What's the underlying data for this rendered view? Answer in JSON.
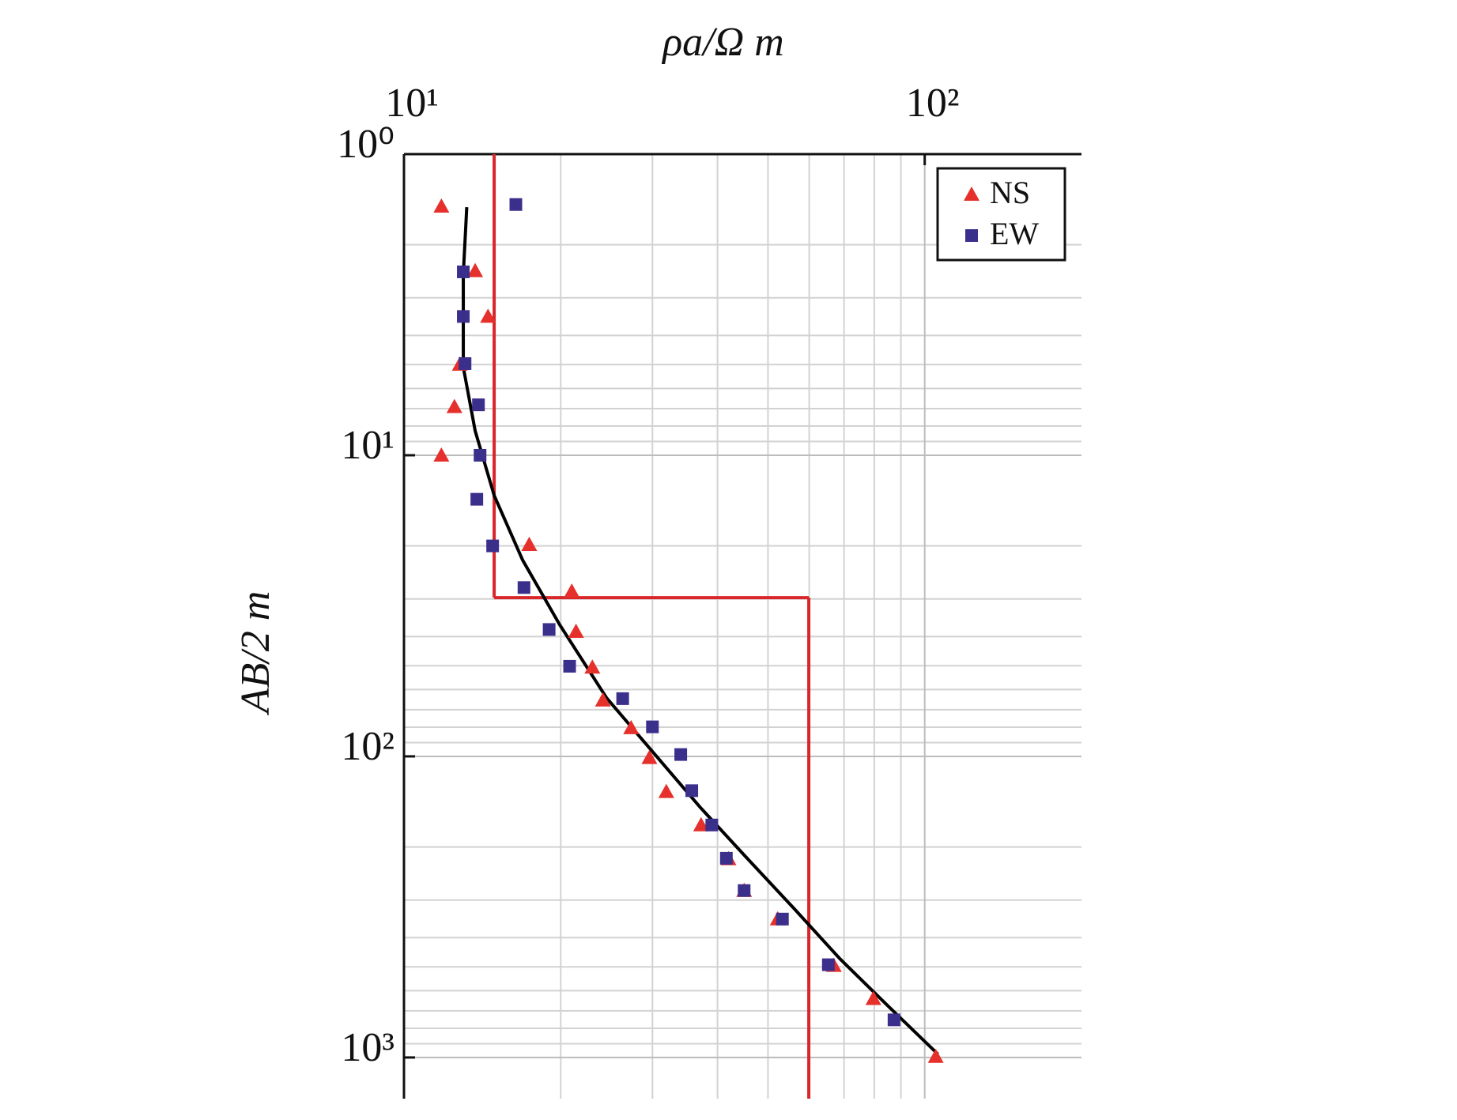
{
  "chart_data": {
    "type": "scatter",
    "xlabel": "ρa/Ω m",
    "ylabel": "AB/2 m",
    "xscale": "log",
    "yscale": "log",
    "y_inverted": true,
    "xlim": [
      10,
      200
    ],
    "ylim": [
      1,
      1370
    ],
    "xticks": [
      {
        "value": 10,
        "label": "10¹"
      },
      {
        "value": 100,
        "label": "10²"
      }
    ],
    "yticks": [
      {
        "value": 1,
        "label": "10⁰"
      },
      {
        "value": 10,
        "label": "10¹"
      },
      {
        "value": 100,
        "label": "10²"
      },
      {
        "value": 1000,
        "label": "10³"
      }
    ],
    "x_minor_ticks": [
      20,
      30,
      40,
      50,
      60,
      70,
      80,
      90
    ],
    "y_minor_ticks": [
      2,
      3,
      4,
      5,
      6,
      7,
      8,
      9,
      20,
      30,
      40,
      50,
      60,
      70,
      80,
      90,
      200,
      300,
      400,
      500,
      600,
      700,
      800,
      900
    ],
    "grid": true,
    "legend": "upper right",
    "series": [
      {
        "name": "NS",
        "marker": "triangle",
        "color": "#e5302b",
        "x": [
          11.8,
          13.7,
          14.5,
          12.8,
          12.5,
          11.8,
          17.4,
          21.0,
          21.4,
          23.0,
          24.1,
          27.3,
          29.6,
          31.9,
          37.2,
          42.0,
          45.0,
          52.2,
          66.9,
          79.7,
          105
        ],
        "values": [
          1.49,
          2.44,
          3.46,
          4.99,
          6.9,
          10,
          19.8,
          28.3,
          38.5,
          50.6,
          65.1,
          80.4,
          101,
          131,
          169,
          219,
          279,
          347,
          495,
          638,
          993
        ]
      },
      {
        "name": "EW",
        "marker": "square",
        "color": "#3b2f8c",
        "x": [
          16.4,
          13.0,
          13.0,
          13.1,
          13.9,
          14.0,
          13.8,
          14.8,
          17.0,
          19.0,
          20.8,
          26.3,
          30.0,
          34.0,
          35.7,
          39.0,
          41.6,
          45.0,
          53.3,
          65.3,
          87.3
        ],
        "values": [
          1.47,
          2.46,
          3.46,
          4.96,
          6.8,
          10,
          14.0,
          20,
          27.5,
          37.9,
          50.2,
          64.3,
          79.8,
          98.6,
          130,
          169,
          218,
          279,
          347,
          492,
          750
        ]
      }
    ],
    "fit_curve": {
      "color": "#000000",
      "x": [
        13.2,
        13.0,
        13.0,
        13.7,
        14.9,
        16.9,
        19.9,
        24.5,
        30.1,
        37.1,
        45.6,
        56.1,
        68.8,
        84.7,
        106
      ],
      "values": [
        1.5,
        2.5,
        5.1,
        8.3,
        13.6,
        22.3,
        36.5,
        64,
        97,
        148,
        218,
        320,
        471,
        670,
        975
      ]
    },
    "model": {
      "color": "#d9262a",
      "resistivities": [
        14.9,
        59.9
      ],
      "depths": [
        29.7
      ]
    }
  }
}
